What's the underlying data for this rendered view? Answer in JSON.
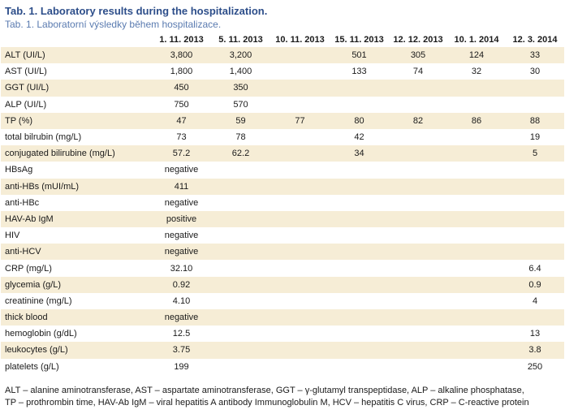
{
  "title": "Tab. 1. Laboratory results during the hospitalization.",
  "subtitle": "Tab. 1. Laboratorní výsledky během hospitalizace.",
  "table": {
    "headers": [
      "",
      "1. 11. 2013",
      "5. 11. 2013",
      "10. 11. 2013",
      "15. 11. 2013",
      "12. 12. 2013",
      "10. 1. 2014",
      "12. 3. 2014"
    ],
    "rows": [
      [
        "ALT (UI/L)",
        "3,800",
        "3,200",
        "",
        "501",
        "305",
        "124",
        "33"
      ],
      [
        "AST (UI/L)",
        "1,800",
        "1,400",
        "",
        "133",
        "74",
        "32",
        "30"
      ],
      [
        "GGT (UI/L)",
        "450",
        "350",
        "",
        "",
        "",
        "",
        ""
      ],
      [
        "ALP (UI/L)",
        "750",
        "570",
        "",
        "",
        "",
        "",
        ""
      ],
      [
        "TP (%)",
        "47",
        "59",
        "77",
        "80",
        "82",
        "86",
        "88"
      ],
      [
        "total bilrubin (mg/L)",
        "73",
        "78",
        "",
        "42",
        "",
        "",
        "19"
      ],
      [
        "conjugated bilirubine (mg/L)",
        "57.2",
        "62.2",
        "",
        "34",
        "",
        "",
        "5"
      ],
      [
        "HBsAg",
        "negative",
        "",
        "",
        "",
        "",
        "",
        ""
      ],
      [
        "anti-HBs (mUI/mL)",
        "411",
        "",
        "",
        "",
        "",
        "",
        ""
      ],
      [
        "anti-HBc",
        "negative",
        "",
        "",
        "",
        "",
        "",
        ""
      ],
      [
        "HAV-Ab IgM",
        "positive",
        "",
        "",
        "",
        "",
        "",
        ""
      ],
      [
        "HIV",
        "negative",
        "",
        "",
        "",
        "",
        "",
        ""
      ],
      [
        "anti-HCV",
        "negative",
        "",
        "",
        "",
        "",
        "",
        ""
      ],
      [
        "CRP (mg/L)",
        "32.10",
        "",
        "",
        "",
        "",
        "",
        "6.4"
      ],
      [
        "glycemia (g/L)",
        "0.92",
        "",
        "",
        "",
        "",
        "",
        "0.9"
      ],
      [
        "creatinine (mg/L)",
        "4.10",
        "",
        "",
        "",
        "",
        "",
        "4"
      ],
      [
        "thick blood",
        "negative",
        "",
        "",
        "",
        "",
        "",
        ""
      ],
      [
        "hemoglobin (g/dL)",
        "12.5",
        "",
        "",
        "",
        "",
        "",
        "13"
      ],
      [
        "leukocytes (g/L)",
        "3.75",
        "",
        "",
        "",
        "",
        "",
        "3.8"
      ],
      [
        "platelets (g/L)",
        "199",
        "",
        "",
        "",
        "",
        "",
        "250"
      ]
    ]
  },
  "footnote": [
    "ALT – alanine aminotransferase, AST – aspartate aminotransferase, GGT – γ-glutamyl transpeptidase, ALP – alkaline phosphatase,",
    "TP – prothrombin time, HAV-Ab IgM – viral hepatitis A antibody Immunoglobulin M, HCV – hepatitis C virus, CRP – C-reactive protein"
  ],
  "colors": {
    "title": "#2d4e8a",
    "subtitle": "#5a7bb0",
    "row_band": "#f6edd6"
  }
}
